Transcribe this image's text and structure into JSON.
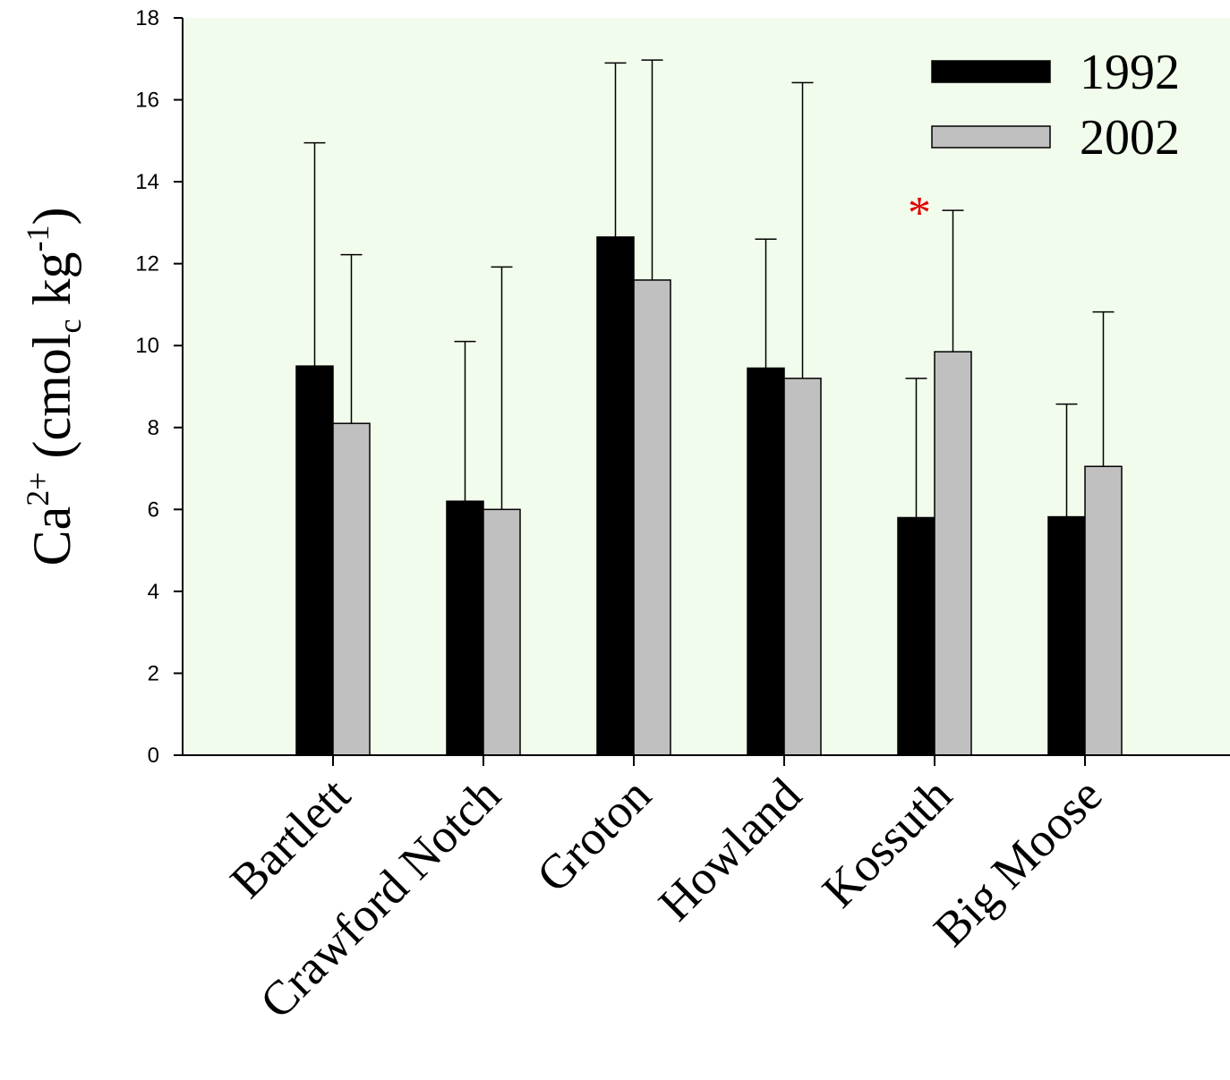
{
  "chart_data": {
    "type": "bar",
    "title": "",
    "xlabel": "",
    "ylabel": {
      "base": "Ca",
      "base_sup": "2+",
      "open": " (cmol",
      "sub": "c",
      "mid": " kg",
      "sup": "-1",
      "close": ")"
    },
    "ylim": [
      0,
      18
    ],
    "yticks": [
      0,
      2,
      4,
      6,
      8,
      10,
      12,
      14,
      16,
      18
    ],
    "categories": [
      "Bartlett",
      "Crawford Notch",
      "Groton",
      "Howland",
      "Kossuth",
      "Big Moose"
    ],
    "series": [
      {
        "name": "1992",
        "color": "#000000",
        "values": [
          9.5,
          6.2,
          12.65,
          9.45,
          5.8,
          5.82
        ],
        "err_upper": [
          14.95,
          10.1,
          16.9,
          12.6,
          9.2,
          8.57
        ]
      },
      {
        "name": "2002",
        "color": "#c0c0c0",
        "values": [
          8.1,
          6.0,
          11.6,
          9.2,
          9.85,
          7.05
        ],
        "err_upper": [
          12.22,
          11.92,
          16.97,
          16.42,
          13.3,
          10.82
        ]
      }
    ],
    "annotations": [
      {
        "text": "*",
        "category": "Kossuth",
        "y": 13.3,
        "color": "#e00000"
      }
    ],
    "background_color": "#f2fcec",
    "legend_position": "top-right",
    "grid": false
  }
}
